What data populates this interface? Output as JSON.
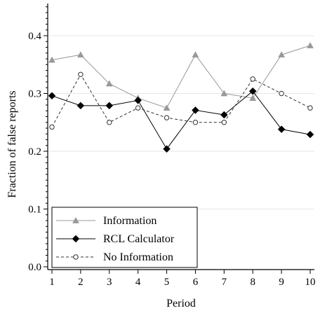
{
  "chart_data": {
    "type": "line",
    "xlabel": "Period",
    "ylabel": "Fraction of false reports",
    "x": [
      1,
      2,
      3,
      4,
      5,
      6,
      7,
      8,
      9,
      10
    ],
    "xlim": [
      1,
      10
    ],
    "ylim": [
      0,
      0.45
    ],
    "xticks": [
      "1",
      "2",
      "3",
      "4",
      "5",
      "6",
      "7",
      "8",
      "9",
      "10"
    ],
    "yticks": [
      "0.0",
      "0.1",
      "0.2",
      "0.3",
      "0.4"
    ],
    "ytick_values": [
      0,
      0.1,
      0.2,
      0.3,
      0.4
    ],
    "grid": "horizontal",
    "legend_position": "bottom-left",
    "series": [
      {
        "name": "Information",
        "values": [
          0.358,
          0.367,
          0.317,
          0.292,
          0.275,
          0.367,
          0.3,
          0.292,
          0.367,
          0.383
        ],
        "color": "#999999",
        "marker": "triangle",
        "line": "solid"
      },
      {
        "name": "RCL Calculator",
        "values": [
          0.296,
          0.279,
          0.279,
          0.288,
          0.204,
          0.271,
          0.263,
          0.304,
          0.238,
          0.229
        ],
        "color": "#000000",
        "marker": "diamond",
        "line": "solid"
      },
      {
        "name": "No Information",
        "values": [
          0.242,
          0.333,
          0.25,
          0.275,
          0.258,
          0.25,
          0.25,
          0.325,
          0.3,
          0.275
        ],
        "color": "#333333",
        "marker": "circle",
        "line": "dashed"
      }
    ]
  }
}
